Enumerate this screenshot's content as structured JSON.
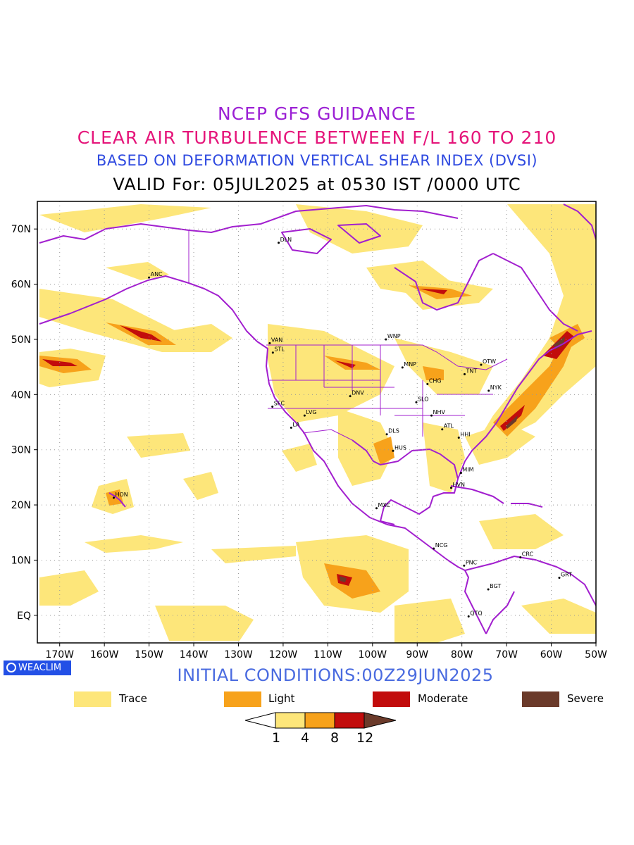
{
  "header": {
    "line1": "NCEP GFS GUIDANCE",
    "line2": "CLEAR AIR TURBULENCE BETWEEN F/L 160 TO 210",
    "line3": "BASED ON DEFORMATION VERTICAL SHEAR INDEX (DVSI)",
    "line4": "VALID For: 05JUL2025 at 0530 IST /0000 UTC"
  },
  "map": {
    "lat_labels": [
      "70N",
      "60N",
      "50N",
      "40N",
      "30N",
      "20N",
      "10N",
      "EQ"
    ],
    "lon_labels": [
      "170W",
      "160W",
      "150W",
      "140W",
      "130W",
      "120W",
      "110W",
      "100W",
      "90W",
      "80W",
      "70W",
      "60W",
      "50W"
    ],
    "lat_range": [
      -5,
      75
    ],
    "lon_range": [
      -175,
      -50
    ],
    "grid": true,
    "colors": {
      "coast": "#a21fcf",
      "trace": "#fde67a",
      "light": "#f7a21b",
      "moderate": "#c20c0c",
      "severe": "#6b3a2a"
    },
    "stations": [
      {
        "code": "ANC",
        "lon": -150,
        "lat": 61.2
      },
      {
        "code": "DLN",
        "lon": -121,
        "lat": 67.5
      },
      {
        "code": "VAN",
        "lon": -123,
        "lat": 49.3
      },
      {
        "code": "STL",
        "lon": -122.3,
        "lat": 47.6
      },
      {
        "code": "WNP",
        "lon": -97,
        "lat": 50
      },
      {
        "code": "MNP",
        "lon": -93.3,
        "lat": 44.9
      },
      {
        "code": "OTW",
        "lon": -75.7,
        "lat": 45.4
      },
      {
        "code": "TNT",
        "lon": -79.4,
        "lat": 43.7
      },
      {
        "code": "CHG",
        "lon": -87.7,
        "lat": 41.9
      },
      {
        "code": "NYK",
        "lon": -74,
        "lat": 40.7
      },
      {
        "code": "DNV",
        "lon": -105,
        "lat": 39.7
      },
      {
        "code": "SFC",
        "lon": -122.4,
        "lat": 37.8
      },
      {
        "code": "LVG",
        "lon": -115.2,
        "lat": 36.2
      },
      {
        "code": "SLO",
        "lon": -90.2,
        "lat": 38.6
      },
      {
        "code": "NHV",
        "lon": -86.8,
        "lat": 36.2
      },
      {
        "code": "LA",
        "lon": -118.2,
        "lat": 34
      },
      {
        "code": "DLS",
        "lon": -96.8,
        "lat": 32.8
      },
      {
        "code": "ATL",
        "lon": -84.4,
        "lat": 33.7
      },
      {
        "code": "HHI",
        "lon": -80.7,
        "lat": 32.2
      },
      {
        "code": "HUS",
        "lon": -95.4,
        "lat": 29.8
      },
      {
        "code": "MIM",
        "lon": -80.2,
        "lat": 25.8
      },
      {
        "code": "HVN",
        "lon": -82.4,
        "lat": 23.1
      },
      {
        "code": "HON",
        "lon": -157.9,
        "lat": 21.3
      },
      {
        "code": "MXC",
        "lon": -99.1,
        "lat": 19.4
      },
      {
        "code": "NCG",
        "lon": -86.3,
        "lat": 12.1
      },
      {
        "code": "CRC",
        "lon": -66.9,
        "lat": 10.5
      },
      {
        "code": "PNC",
        "lon": -79.5,
        "lat": 9
      },
      {
        "code": "GRT",
        "lon": -58.2,
        "lat": 6.8
      },
      {
        "code": "BGT",
        "lon": -74.1,
        "lat": 4.7
      },
      {
        "code": "QTO",
        "lon": -78.5,
        "lat": -0.2
      }
    ]
  },
  "logo": {
    "label": "WEACLIM"
  },
  "initial_conditions": "INITIAL CONDITIONS:00Z29JUN2025",
  "legend": [
    {
      "label": "Trace",
      "color": "#fde67a"
    },
    {
      "label": "Light",
      "color": "#f7a21b"
    },
    {
      "label": "Moderate",
      "color": "#c20c0c"
    },
    {
      "label": "Severe",
      "color": "#6b3a2a"
    }
  ],
  "colorbar": {
    "levels": [
      "1",
      "4",
      "8",
      "12"
    ],
    "colors": [
      "#fde67a",
      "#f7a21b",
      "#c20c0c"
    ],
    "under_color": "#ffffff",
    "over_color": "#6b3a2a"
  }
}
